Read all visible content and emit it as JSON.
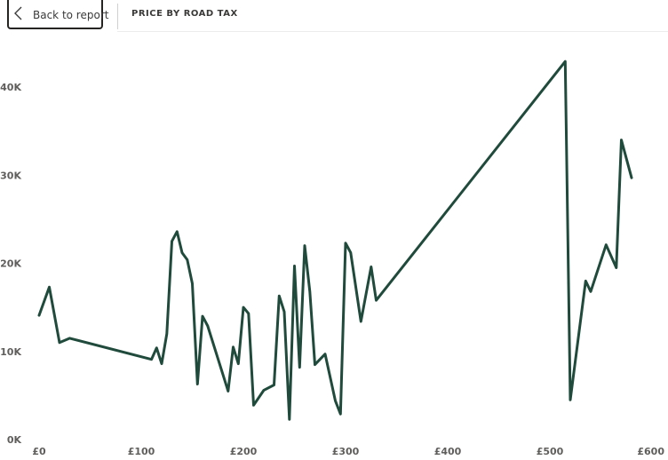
{
  "header": {
    "back_label": "Back to report",
    "title": "PRICE BY ROAD TAX"
  },
  "colors": {
    "line": "#1f4a3c",
    "tick_text": "#605e5c"
  },
  "chart_data": {
    "type": "line",
    "title": "",
    "xlabel": "",
    "ylabel": "",
    "xlim": [
      0,
      600
    ],
    "ylim": [
      0,
      40000
    ],
    "x_ticks": [
      "£0",
      "£100",
      "£200",
      "£300",
      "£400",
      "£500",
      "£600"
    ],
    "y_ticks": [
      "0K",
      "10K",
      "20K",
      "30K",
      "40K"
    ],
    "grid": false,
    "series": [
      {
        "x": [
          0,
          10,
          20,
          30,
          110,
          115,
          120,
          125,
          130,
          135,
          140,
          145,
          150,
          155,
          160,
          165,
          185,
          190,
          195,
          200,
          205,
          210,
          220,
          230,
          235,
          240,
          245,
          250,
          255,
          260,
          265,
          270,
          280,
          290,
          295,
          300,
          305,
          315,
          325,
          330,
          515,
          520,
          535,
          540,
          555,
          565,
          570,
          580
        ],
        "y": [
          14100,
          17300,
          11000,
          11500,
          9100,
          10400,
          8600,
          12000,
          22500,
          23600,
          21200,
          20400,
          17700,
          6300,
          14000,
          12900,
          5500,
          10500,
          8600,
          15000,
          14300,
          3900,
          5600,
          6200,
          16300,
          14500,
          2300,
          19700,
          8200,
          22000,
          16800,
          8500,
          9700,
          4400,
          2900,
          22300,
          21200,
          13400,
          19600,
          15800,
          42900,
          4500,
          18000,
          16800,
          22100,
          19500,
          34000,
          29700
        ]
      }
    ]
  }
}
